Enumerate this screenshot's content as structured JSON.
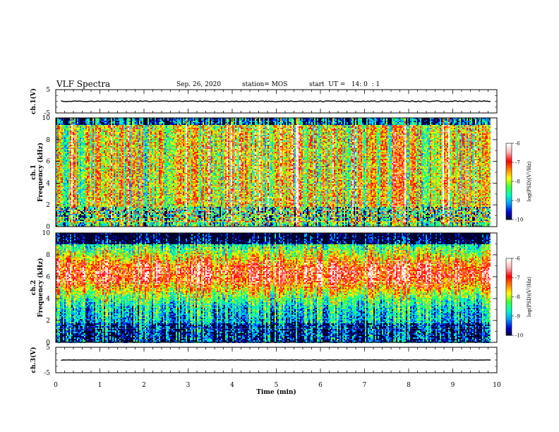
{
  "header": {
    "title": "VLF Spectra",
    "date": "Sep. 26, 2020",
    "station": "station= MOS",
    "start": "start  UT =   14: 0  : 1"
  },
  "chart_data": [
    {
      "type": "line",
      "name": "ch1-waveform",
      "ylabel": "ch.1(V)",
      "ylim": [
        -5,
        5
      ],
      "yticks": [
        "5",
        "-5"
      ],
      "xlim": [
        0,
        10
      ],
      "trace_level": 0,
      "trace_color": "#000000"
    },
    {
      "type": "heatmap",
      "name": "ch1-spectrogram",
      "ylabel": "ch.1\nFrequency  (kHz)",
      "ylim": [
        0,
        10
      ],
      "yticks": [
        "0",
        "2",
        "4",
        "6",
        "8",
        "10"
      ],
      "xlim": [
        0,
        9.85
      ],
      "colorbar": {
        "label": "log(PSD)(V²/Hz)",
        "range": [
          -10,
          -6
        ],
        "ticks": [
          "-6",
          "-7",
          "-8",
          "-9",
          "-10"
        ]
      },
      "profile": "ch1"
    },
    {
      "type": "heatmap",
      "name": "ch2-spectrogram",
      "ylabel": "ch.2\nFrequency  (kHz)",
      "ylim": [
        0,
        10
      ],
      "yticks": [
        "0",
        "2",
        "4",
        "6",
        "8",
        "10"
      ],
      "xlim": [
        0,
        9.85
      ],
      "colorbar": {
        "label": "log(PSD)(V²/Hz)",
        "range": [
          -10,
          -6
        ],
        "ticks": [
          "-6",
          "-7",
          "-8",
          "-9",
          "-10"
        ]
      },
      "profile": "ch2"
    },
    {
      "type": "line",
      "name": "ch3-waveform",
      "ylabel": "ch.3(V)",
      "ylim": [
        -5,
        5
      ],
      "yticks": [
        "5",
        "-5"
      ],
      "xlim": [
        0,
        10
      ],
      "trace_level": 0,
      "trace_color": "#000000"
    }
  ],
  "x_axis": {
    "label": "Time  (min)",
    "range": [
      0,
      10
    ],
    "ticks": [
      "0",
      "1",
      "2",
      "3",
      "4",
      "5",
      "6",
      "7",
      "8",
      "9",
      "10"
    ]
  },
  "colors": {
    "colormap": [
      "#000030",
      "#0000d0",
      "#00a0ff",
      "#00ffc0",
      "#40ff40",
      "#ffff00",
      "#ff8000",
      "#ff0000",
      "#ffb0b0",
      "#ffffff"
    ]
  }
}
